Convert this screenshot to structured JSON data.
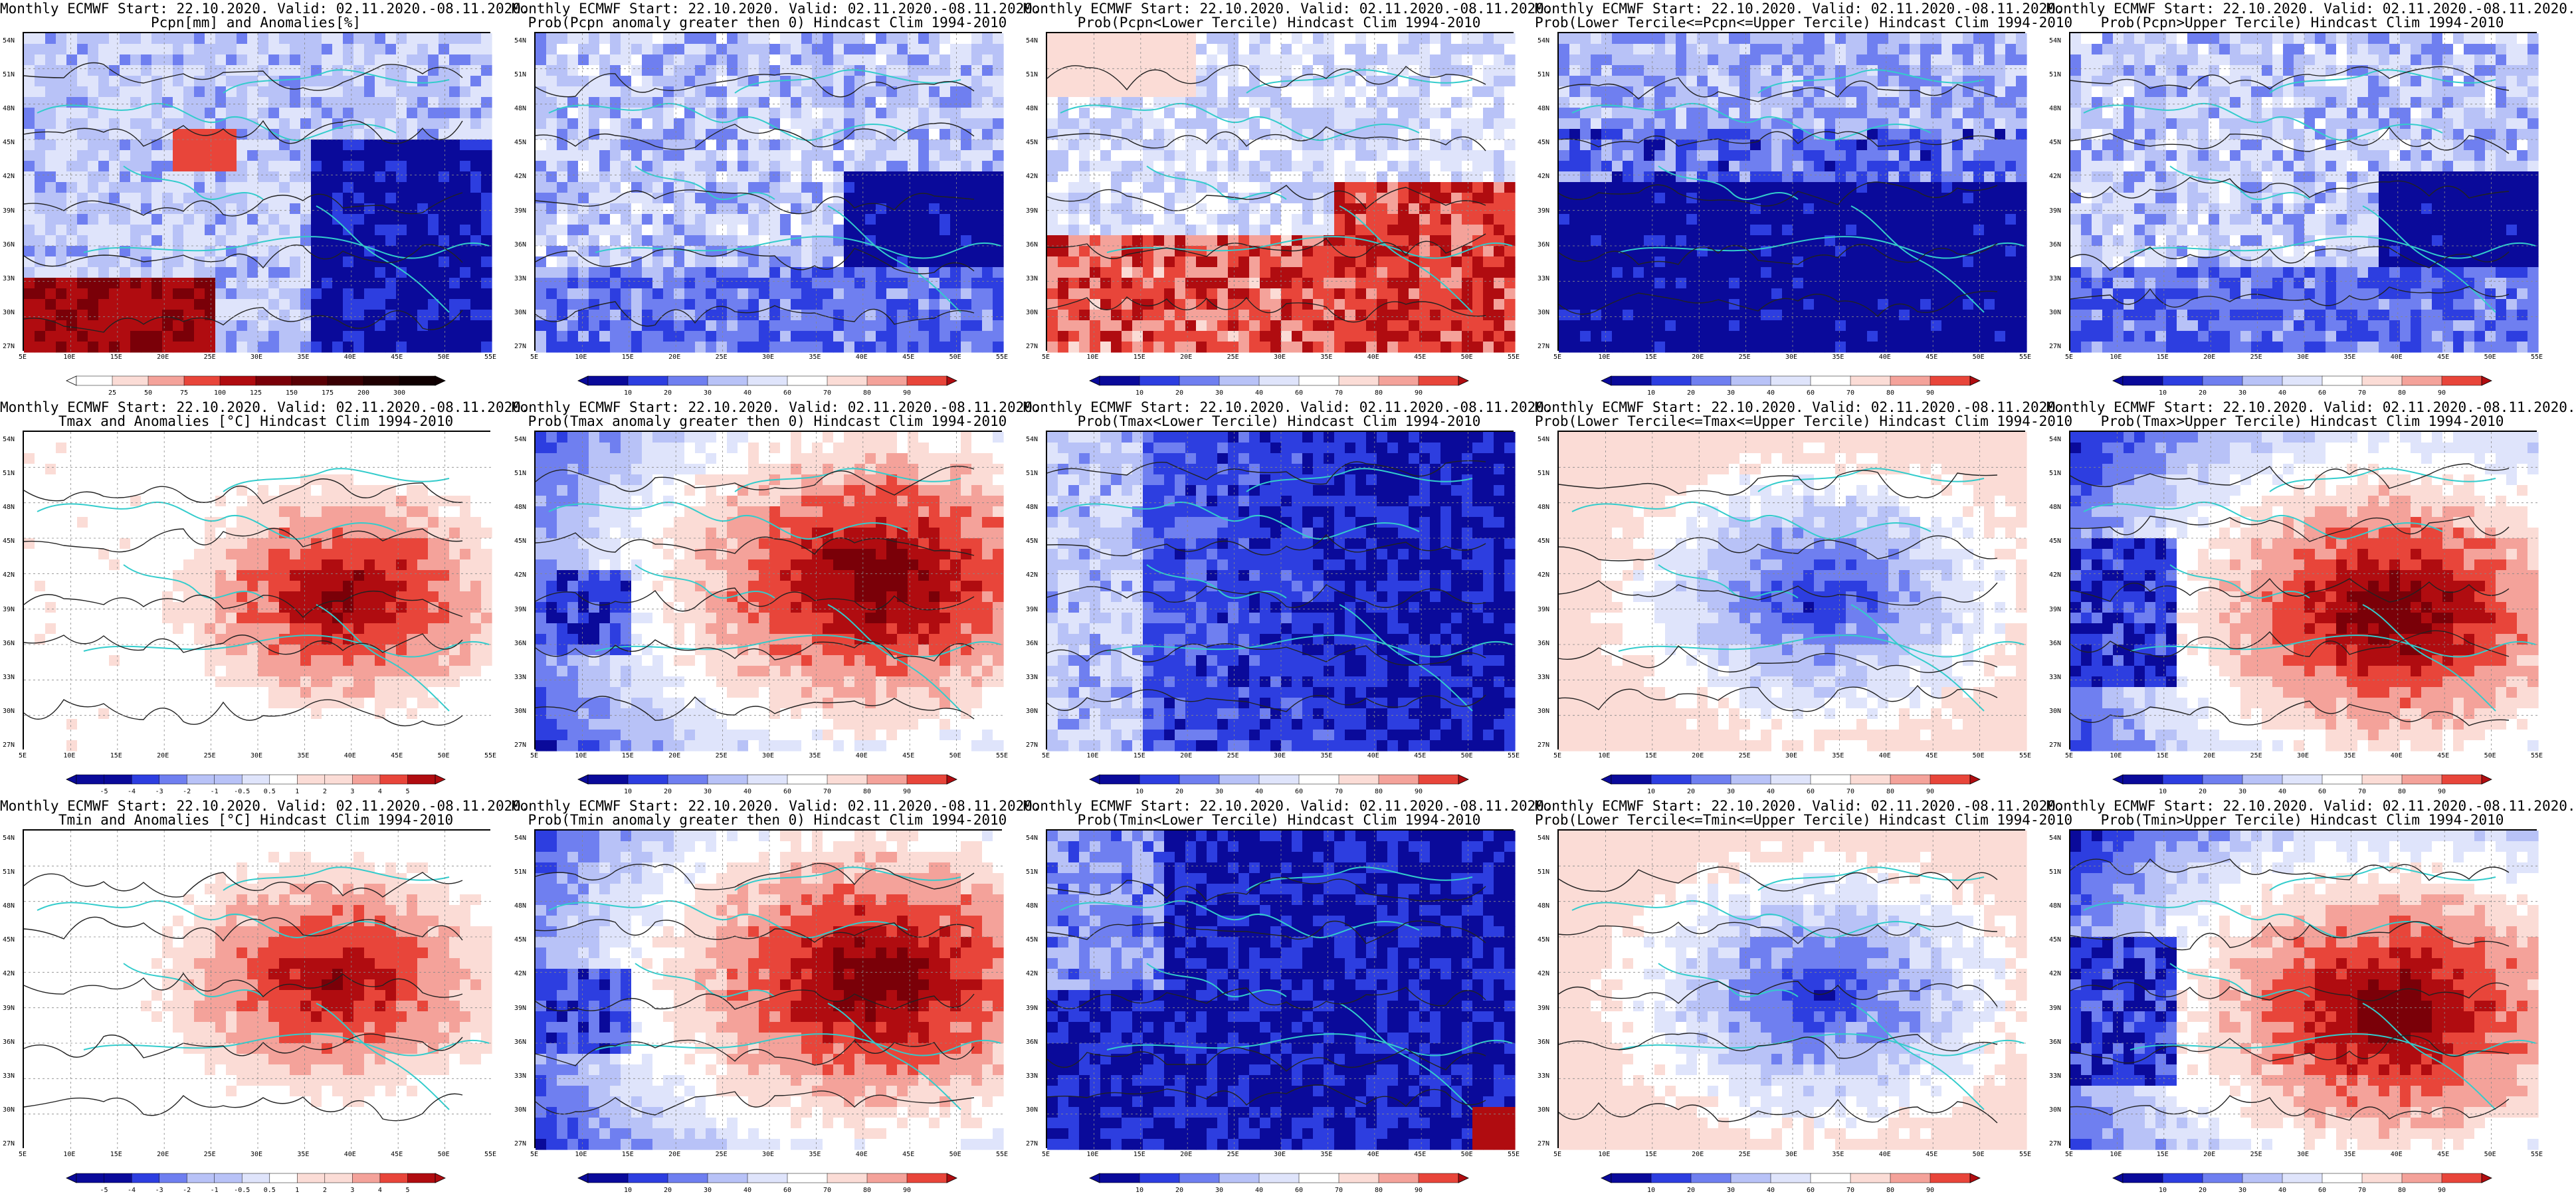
{
  "colors": {
    "deep_blue": "#0a0a9a",
    "blue": "#2d3ee0",
    "mid_blue": "#6f7ff0",
    "light_blue": "#b8c2f7",
    "pale_blue": "#dfe4fb",
    "white": "#ffffff",
    "pale_red": "#fbdcd6",
    "light_red": "#f4a29a",
    "red": "#e8453a",
    "dark_red": "#b00c10",
    "deep_red": "#7a0008",
    "coast": "#33cccc",
    "contour": "#222222"
  },
  "lat_labels": [
    "54N",
    "51N",
    "48N",
    "45N",
    "42N",
    "39N",
    "36N",
    "33N",
    "30N",
    "27N"
  ],
  "lon_labels": [
    "5E",
    "10E",
    "15E",
    "20E",
    "25E",
    "30E",
    "35E",
    "40E",
    "45E",
    "50E",
    "55E"
  ],
  "panels": [
    {
      "title1": "Monthly ECMWF Start: 22.10.2020. Valid: 02.11.2020.-08.11.2020.",
      "title2": "Pcpn[mm] and Anomalies[%]",
      "scheme": "pcpn_anom",
      "cbar": [
        "25",
        "50",
        "75",
        "100",
        "125",
        "150",
        "175",
        "200",
        "300"
      ]
    },
    {
      "title1": "Monthly ECMWF Start: 22.10.2020. Valid: 02.11.2020.-08.11.2020.",
      "title2": "Prob(Pcpn anomaly greater then 0) Hindcast Clim 1994-2010",
      "scheme": "blue",
      "cbar": [
        "10",
        "20",
        "30",
        "40",
        "60",
        "70",
        "80",
        "90"
      ]
    },
    {
      "title1": "Monthly ECMWF Start: 22.10.2020. Valid: 02.11.2020.-08.11.2020.",
      "title2": "Prob(Pcpn<Lower Tercile) Hindcast Clim 1994-2010",
      "scheme": "red_south",
      "cbar": [
        "10",
        "20",
        "30",
        "40",
        "60",
        "70",
        "80",
        "90"
      ]
    },
    {
      "title1": "Monthly ECMWF Start: 22.10.2020. Valid: 02.11.2020.-08.11.2020.",
      "title2": "Prob(Lower Tercile<=Pcpn<=Upper Tercile) Hindcast Clim 1994-2010",
      "scheme": "blue_deep",
      "cbar": [
        "10",
        "20",
        "30",
        "40",
        "60",
        "70",
        "80",
        "90"
      ]
    },
    {
      "title1": "Monthly ECMWF Start: 22.10.2020. Valid: 02.11.2020.-08.11.2020.",
      "title2": "Prob(Pcpn>Upper Tercile) Hindcast Clim 1994-2010",
      "scheme": "blue",
      "cbar": [
        "10",
        "20",
        "30",
        "40",
        "60",
        "70",
        "80",
        "90"
      ]
    },
    {
      "title1": "Monthly ECMWF Start: 22.10.2020. Valid: 02.11.2020.-08.11.2020.",
      "title2": "Tmax and Anomalies [°C] Hindcast Clim 1994-2010",
      "scheme": "temp_anom",
      "cbar": [
        "-5",
        "-4",
        "-3",
        "-2",
        "-1",
        "-0.5",
        "0.5",
        "1",
        "2",
        "3",
        "4",
        "5"
      ]
    },
    {
      "title1": "Monthly ECMWF Start: 22.10.2020. Valid: 02.11.2020.-08.11.2020.",
      "title2": "Prob(Tmax anomaly greater then 0) Hindcast Clim 1994-2010",
      "scheme": "red_east",
      "cbar": [
        "10",
        "20",
        "30",
        "40",
        "60",
        "70",
        "80",
        "90"
      ]
    },
    {
      "title1": "Monthly ECMWF Start: 22.10.2020. Valid: 02.11.2020.-08.11.2020.",
      "title2": "Prob(Tmax<Lower Tercile) Hindcast Clim 1994-2010",
      "scheme": "blue_deep_east",
      "cbar": [
        "10",
        "20",
        "30",
        "40",
        "60",
        "70",
        "80",
        "90"
      ]
    },
    {
      "title1": "Monthly ECMWF Start: 22.10.2020. Valid: 02.11.2020.-08.11.2020.",
      "title2": "Prob(Lower Tercile<=Tmax<=Upper Tercile) Hindcast Clim 1994-2010",
      "scheme": "blue_center",
      "cbar": [
        "10",
        "20",
        "30",
        "40",
        "60",
        "70",
        "80",
        "90"
      ]
    },
    {
      "title1": "Monthly ECMWF Start: 22.10.2020. Valid: 02.11.2020.-08.11.2020.",
      "title2": "Prob(Tmax>Upper Tercile) Hindcast Clim 1994-2010",
      "scheme": "red_east_blue_west",
      "cbar": [
        "10",
        "20",
        "30",
        "40",
        "60",
        "70",
        "80",
        "90"
      ]
    },
    {
      "title1": "Monthly ECMWF Start: 22.10.2020. Valid: 02.11.2020.-08.11.2020.",
      "title2": "Tmin and Anomalies [°C] Hindcast Clim 1994-2010",
      "scheme": "temp_anom_min",
      "cbar": [
        "-5",
        "-4",
        "-3",
        "-2",
        "-1",
        "-0.5",
        "0.5",
        "1",
        "2",
        "3",
        "4",
        "5"
      ]
    },
    {
      "title1": "Monthly ECMWF Start: 22.10.2020. Valid: 02.11.2020.-08.11.2020.",
      "title2": "Prob(Tmin anomaly greater then 0) Hindcast Clim 1994-2010",
      "scheme": "red_east",
      "cbar": [
        "10",
        "20",
        "30",
        "40",
        "60",
        "70",
        "80",
        "90"
      ]
    },
    {
      "title1": "Monthly ECMWF Start: 22.10.2020. Valid: 02.11.2020.-08.11.2020.",
      "title2": "Prob(Tmin<Lower Tercile) Hindcast Clim 1994-2010",
      "scheme": "blue_all",
      "cbar": [
        "10",
        "20",
        "30",
        "40",
        "60",
        "70",
        "80",
        "90"
      ]
    },
    {
      "title1": "Monthly ECMWF Start: 22.10.2020. Valid: 02.11.2020.-08.11.2020.",
      "title2": "Prob(Lower Tercile<=Tmin<=Upper Tercile) Hindcast Clim 1994-2010",
      "scheme": "blue_center",
      "cbar": [
        "10",
        "20",
        "30",
        "40",
        "60",
        "70",
        "80",
        "90"
      ]
    },
    {
      "title1": "Monthly ECMWF Start: 22.10.2020. Valid: 02.11.2020.-08.11.2020.",
      "title2": "Prob(Tmin>Upper Tercile) Hindcast Clim 1994-2010",
      "scheme": "red_east_blue_west",
      "cbar": [
        "10",
        "20",
        "30",
        "40",
        "60",
        "70",
        "80",
        "90"
      ]
    }
  ]
}
